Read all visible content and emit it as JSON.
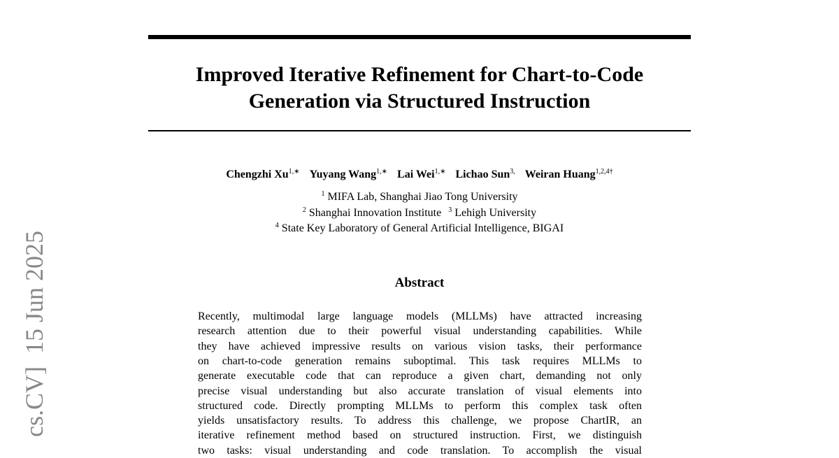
{
  "sidebar": "cs.CV]  15 Jun 2025",
  "title": [
    "Improved Iterative Refinement for Chart-to-Code",
    "Generation via Structured Instruction"
  ],
  "authors": [
    {
      "name": "Chengzhi Xu",
      "sup": "1,∗"
    },
    {
      "name": "Yuyang Wang",
      "sup": "1,∗"
    },
    {
      "name": "Lai Wei",
      "sup": "1,∗"
    },
    {
      "name": "Lichao Sun",
      "sup": "3,"
    },
    {
      "name": "Weiran Huang",
      "sup": "1,2,4†"
    }
  ],
  "affiliations": [
    [
      {
        "sup": "1",
        "text": "MIFA Lab, Shanghai Jiao Tong University"
      }
    ],
    [
      {
        "sup": "2",
        "text": "Shanghai Innovation Institute"
      },
      {
        "sup": "3",
        "text": "Lehigh University"
      }
    ],
    [
      {
        "sup": "4",
        "text": "State Key Laboratory of General Artificial Intelligence, BIGAI"
      }
    ]
  ],
  "abstract": {
    "heading": "Abstract",
    "lines": [
      "Recently, multimodal large language models (MLLMs) have attracted increasing",
      "research attention due to their powerful visual understanding capabilities. While",
      "they have achieved impressive results on various vision tasks, their performance",
      "on chart-to-code generation remains suboptimal. This task requires MLLMs to",
      "generate executable code that can reproduce a given chart, demanding not only",
      "precise visual understanding but also accurate translation of visual elements into",
      "structured code. Directly prompting MLLMs to perform this complex task often",
      "yields unsatisfactory results. To address this challenge, we propose ChartIR, an",
      "iterative refinement method based on structured instruction. First, we distinguish",
      "two tasks: visual understanding and code translation. To accomplish the visual"
    ]
  }
}
